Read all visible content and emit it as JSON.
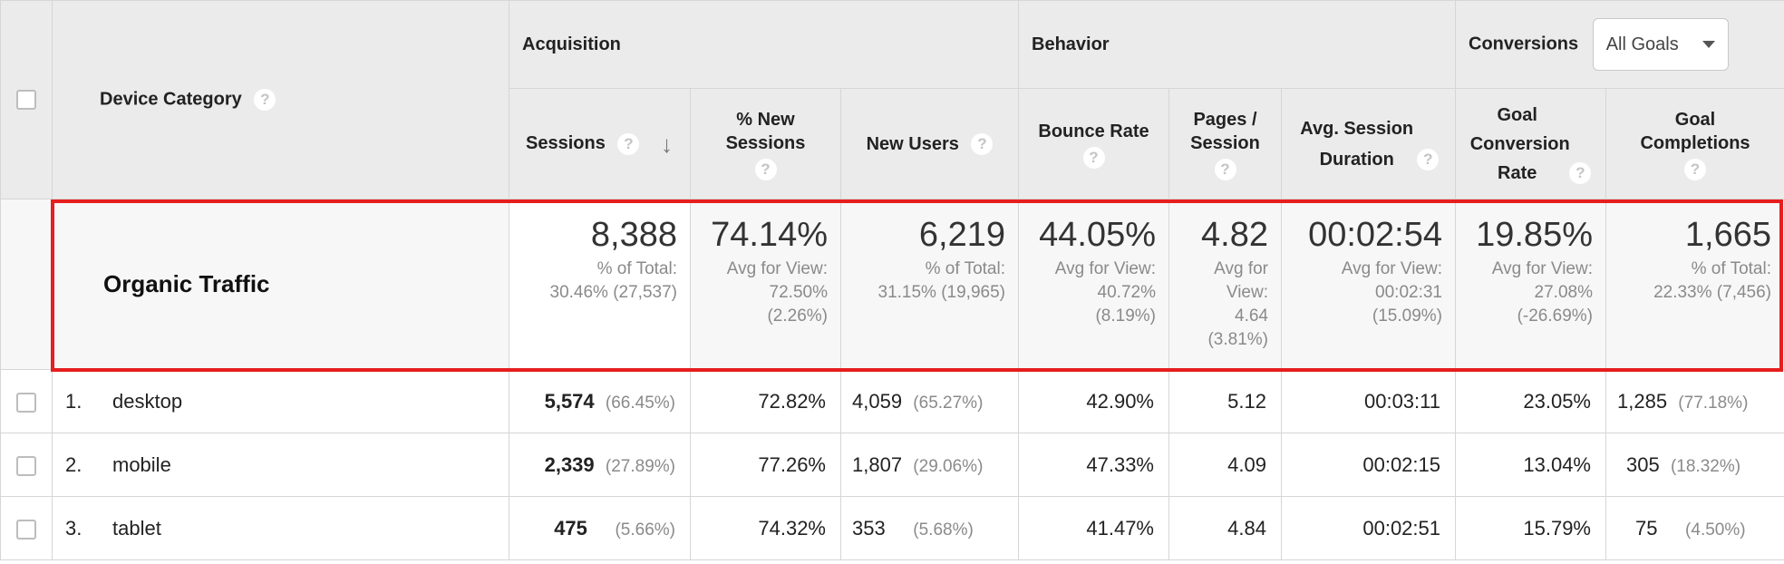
{
  "headers": {
    "device_category": "Device Category",
    "acquisition": "Acquisition",
    "behavior": "Behavior",
    "conversions": "Conversions",
    "goal_select": "All Goals",
    "sessions": "Sessions",
    "pct_new_sessions": "% New Sessions",
    "new_users": "New Users",
    "bounce_rate": "Bounce Rate",
    "pages_session": "Pages / Session",
    "avg_session_duration": "Avg. Session Duration",
    "goal_conversion_rate": "Goal Conversion Rate",
    "goal_completions": "Goal Completions",
    "help_glyph": "?"
  },
  "summary": {
    "label": "Organic Traffic",
    "sessions": {
      "value": "8,388",
      "sub1": "% of Total:",
      "sub2": "30.46% (27,537)"
    },
    "pct_new_sessions": {
      "value": "74.14%",
      "sub1": "Avg for View:",
      "sub2": "72.50%",
      "sub3": "(2.26%)"
    },
    "new_users": {
      "value": "6,219",
      "sub1": "% of Total:",
      "sub2": "31.15% (19,965)"
    },
    "bounce_rate": {
      "value": "44.05%",
      "sub1": "Avg for View:",
      "sub2": "40.72%",
      "sub3": "(8.19%)"
    },
    "pages_session": {
      "value": "4.82",
      "sub1": "Avg for",
      "sub2": "View:",
      "sub3": "4.64",
      "sub4": "(3.81%)"
    },
    "avg_session_duration": {
      "value": "00:02:54",
      "sub1": "Avg for View:",
      "sub2": "00:02:31",
      "sub3": "(15.09%)"
    },
    "goal_conversion_rate": {
      "value": "19.85%",
      "sub1": "Avg for View:",
      "sub2": "27.08%",
      "sub3": "(-26.69%)"
    },
    "goal_completions": {
      "value": "1,665",
      "sub1": "% of Total:",
      "sub2": "22.33% (7,456)"
    }
  },
  "rows": [
    {
      "index": "1.",
      "device": "desktop",
      "sessions": "5,574",
      "sessions_pct": "(66.45%)",
      "pct_new_sessions": "72.82%",
      "new_users": "4,059",
      "new_users_pct": "(65.27%)",
      "bounce_rate": "42.90%",
      "pages_session": "5.12",
      "avg_session_duration": "00:03:11",
      "goal_conversion_rate": "23.05%",
      "goal_completions": "1,285",
      "goal_completions_pct": "(77.18%)"
    },
    {
      "index": "2.",
      "device": "mobile",
      "sessions": "2,339",
      "sessions_pct": "(27.89%)",
      "pct_new_sessions": "77.26%",
      "new_users": "1,807",
      "new_users_pct": "(29.06%)",
      "bounce_rate": "47.33%",
      "pages_session": "4.09",
      "avg_session_duration": "00:02:15",
      "goal_conversion_rate": "13.04%",
      "goal_completions": "305",
      "goal_completions_pct": "(18.32%)"
    },
    {
      "index": "3.",
      "device": "tablet",
      "sessions": "475",
      "sessions_pct": "(5.66%)",
      "pct_new_sessions": "74.32%",
      "new_users": "353",
      "new_users_pct": "(5.68%)",
      "bounce_rate": "41.47%",
      "pages_session": "4.84",
      "avg_session_duration": "00:02:51",
      "goal_conversion_rate": "15.79%",
      "goal_completions": "75",
      "goal_completions_pct": "(4.50%)"
    }
  ],
  "colors": {
    "highlight": "#e61e1e",
    "header_bg": "#ebebeb"
  }
}
